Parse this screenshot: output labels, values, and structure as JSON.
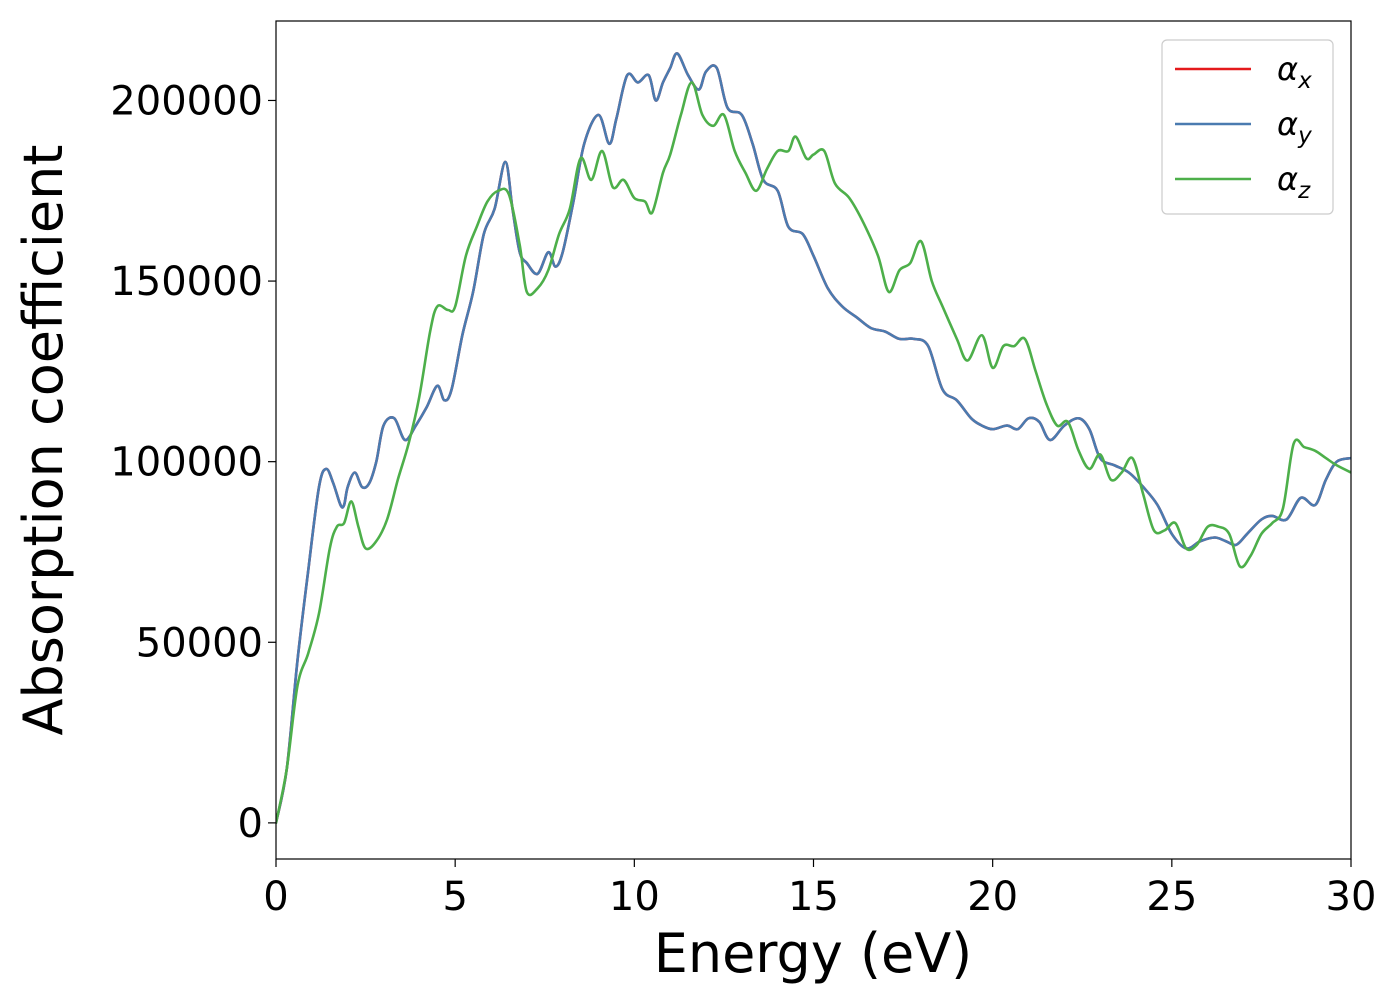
{
  "chart_data": {
    "type": "line",
    "title": "",
    "xlabel": "Energy (eV)",
    "ylabel": "Absorption coefficient",
    "xlim": [
      0,
      30
    ],
    "ylim": [
      -10000,
      222000
    ],
    "xticks": [
      0,
      5,
      10,
      15,
      20,
      25,
      30
    ],
    "yticks": [
      0,
      50000,
      100000,
      150000,
      200000
    ],
    "grid": false,
    "legend_position": "top-right",
    "series": [
      {
        "name": "α_x",
        "legend_base": "α",
        "legend_sub": "x",
        "color": "#e41a1c",
        "x": [
          0,
          0.3,
          0.6,
          0.9,
          1.2,
          1.4,
          1.6,
          1.8,
          1.9,
          2.0,
          2.2,
          2.4,
          2.6,
          2.8,
          3.0,
          3.3,
          3.6,
          3.9,
          4.2,
          4.5,
          4.7,
          4.9,
          5.2,
          5.5,
          5.8,
          6.1,
          6.4,
          6.6,
          6.8,
          7.0,
          7.3,
          7.6,
          7.8,
          8.0,
          8.3,
          8.6,
          9.0,
          9.3,
          9.5,
          9.8,
          10.1,
          10.4,
          10.6,
          10.8,
          11.0,
          11.2,
          11.5,
          11.8,
          12.0,
          12.3,
          12.6,
          13.0,
          13.3,
          13.6,
          14.0,
          14.3,
          14.7,
          15.0,
          15.4,
          15.8,
          16.2,
          16.6,
          17.0,
          17.4,
          17.8,
          18.2,
          18.6,
          19.0,
          19.4,
          19.7,
          20.0,
          20.4,
          20.7,
          21.0,
          21.3,
          21.6,
          22.0,
          22.4,
          22.7,
          23.0,
          23.4,
          23.8,
          24.2,
          24.6,
          25.0,
          25.4,
          25.8,
          26.2,
          26.5,
          26.8,
          27.1,
          27.5,
          27.8,
          28.2,
          28.6,
          29.0,
          29.3,
          29.6,
          30.0
        ],
        "y": [
          0,
          15000,
          45000,
          70000,
          93000,
          98000,
          94000,
          88000,
          88000,
          93000,
          97000,
          93000,
          94000,
          100000,
          110000,
          112000,
          106000,
          110000,
          115000,
          121000,
          117000,
          120000,
          135000,
          147000,
          163000,
          170000,
          183000,
          170000,
          158000,
          155000,
          152000,
          158000,
          154000,
          158000,
          172000,
          188000,
          196000,
          188000,
          195000,
          207000,
          205000,
          207000,
          200000,
          205000,
          209000,
          213000,
          207000,
          203000,
          208000,
          209000,
          198000,
          196000,
          188000,
          178000,
          175000,
          165000,
          163000,
          157000,
          148000,
          143000,
          140000,
          137000,
          136000,
          134000,
          134000,
          132000,
          120000,
          117000,
          112000,
          110000,
          109000,
          110000,
          109000,
          112000,
          111000,
          106000,
          110000,
          112000,
          109000,
          101000,
          99000,
          97000,
          93000,
          88000,
          80000,
          76000,
          78000,
          79000,
          78000,
          77000,
          80000,
          84000,
          85000,
          84000,
          90000,
          88000,
          95000,
          100000,
          101000
        ]
      },
      {
        "name": "α_y",
        "legend_base": "α",
        "legend_sub": "y",
        "color": "#4a7bb0",
        "x": [
          0,
          0.3,
          0.6,
          0.9,
          1.2,
          1.4,
          1.6,
          1.8,
          1.9,
          2.0,
          2.2,
          2.4,
          2.6,
          2.8,
          3.0,
          3.3,
          3.6,
          3.9,
          4.2,
          4.5,
          4.7,
          4.9,
          5.2,
          5.5,
          5.8,
          6.1,
          6.4,
          6.6,
          6.8,
          7.0,
          7.3,
          7.6,
          7.8,
          8.0,
          8.3,
          8.6,
          9.0,
          9.3,
          9.5,
          9.8,
          10.1,
          10.4,
          10.6,
          10.8,
          11.0,
          11.2,
          11.5,
          11.8,
          12.0,
          12.3,
          12.6,
          13.0,
          13.3,
          13.6,
          14.0,
          14.3,
          14.7,
          15.0,
          15.4,
          15.8,
          16.2,
          16.6,
          17.0,
          17.4,
          17.8,
          18.2,
          18.6,
          19.0,
          19.4,
          19.7,
          20.0,
          20.4,
          20.7,
          21.0,
          21.3,
          21.6,
          22.0,
          22.4,
          22.7,
          23.0,
          23.4,
          23.8,
          24.2,
          24.6,
          25.0,
          25.4,
          25.8,
          26.2,
          26.5,
          26.8,
          27.1,
          27.5,
          27.8,
          28.2,
          28.6,
          29.0,
          29.3,
          29.6,
          30.0
        ],
        "y": [
          0,
          15000,
          45000,
          70000,
          93000,
          98000,
          94000,
          88000,
          88000,
          93000,
          97000,
          93000,
          94000,
          100000,
          110000,
          112000,
          106000,
          110000,
          115000,
          121000,
          117000,
          120000,
          135000,
          147000,
          163000,
          170000,
          183000,
          170000,
          158000,
          155000,
          152000,
          158000,
          154000,
          158000,
          172000,
          188000,
          196000,
          188000,
          195000,
          207000,
          205000,
          207000,
          200000,
          205000,
          209000,
          213000,
          207000,
          203000,
          208000,
          209000,
          198000,
          196000,
          188000,
          178000,
          175000,
          165000,
          163000,
          157000,
          148000,
          143000,
          140000,
          137000,
          136000,
          134000,
          134000,
          132000,
          120000,
          117000,
          112000,
          110000,
          109000,
          110000,
          109000,
          112000,
          111000,
          106000,
          110000,
          112000,
          109000,
          101000,
          99000,
          97000,
          93000,
          88000,
          80000,
          76000,
          78000,
          79000,
          78000,
          77000,
          80000,
          84000,
          85000,
          84000,
          90000,
          88000,
          95000,
          100000,
          101000
        ]
      },
      {
        "name": "α_z",
        "legend_base": "α",
        "legend_sub": "z",
        "color": "#4daf4a",
        "x": [
          0,
          0.3,
          0.6,
          0.9,
          1.2,
          1.5,
          1.7,
          1.9,
          2.1,
          2.3,
          2.5,
          2.8,
          3.1,
          3.4,
          3.7,
          4.0,
          4.3,
          4.5,
          4.8,
          5.0,
          5.3,
          5.6,
          5.9,
          6.2,
          6.5,
          6.8,
          7.0,
          7.3,
          7.6,
          7.9,
          8.2,
          8.5,
          8.8,
          9.1,
          9.4,
          9.7,
          10.0,
          10.3,
          10.5,
          10.8,
          11.0,
          11.3,
          11.6,
          11.9,
          12.2,
          12.5,
          12.8,
          13.1,
          13.4,
          13.7,
          14.0,
          14.3,
          14.5,
          14.8,
          15.0,
          15.3,
          15.6,
          16.0,
          16.4,
          16.8,
          17.1,
          17.4,
          17.7,
          18.0,
          18.3,
          18.6,
          19.0,
          19.3,
          19.7,
          20.0,
          20.3,
          20.6,
          20.9,
          21.2,
          21.5,
          21.8,
          22.1,
          22.4,
          22.7,
          23.0,
          23.3,
          23.6,
          23.9,
          24.2,
          24.5,
          24.8,
          25.1,
          25.4,
          25.7,
          26.0,
          26.3,
          26.6,
          26.9,
          27.2,
          27.5,
          27.8,
          28.1,
          28.4,
          28.7,
          29.0,
          29.3,
          29.6,
          30.0
        ],
        "y": [
          0,
          15000,
          38000,
          47000,
          58000,
          76000,
          82000,
          83000,
          89000,
          82000,
          76000,
          78000,
          84000,
          95000,
          105000,
          118000,
          136000,
          143000,
          142000,
          143000,
          157000,
          165000,
          172000,
          175000,
          174000,
          160000,
          147000,
          148000,
          153000,
          163000,
          170000,
          184000,
          178000,
          186000,
          176000,
          178000,
          173000,
          172000,
          169000,
          180000,
          185000,
          196000,
          205000,
          196000,
          193000,
          196000,
          186000,
          180000,
          175000,
          181000,
          186000,
          186000,
          190000,
          184000,
          185000,
          186000,
          177000,
          173000,
          166000,
          157000,
          147000,
          153000,
          155000,
          161000,
          150000,
          143000,
          134000,
          128000,
          135000,
          126000,
          132000,
          132000,
          134000,
          125000,
          116000,
          110000,
          111000,
          103000,
          98000,
          102000,
          95000,
          97000,
          101000,
          91000,
          81000,
          81000,
          83000,
          76000,
          77000,
          82000,
          82000,
          80000,
          71000,
          74000,
          80000,
          83000,
          87000,
          105000,
          104000,
          103000,
          101000,
          99000,
          97000
        ]
      }
    ]
  }
}
